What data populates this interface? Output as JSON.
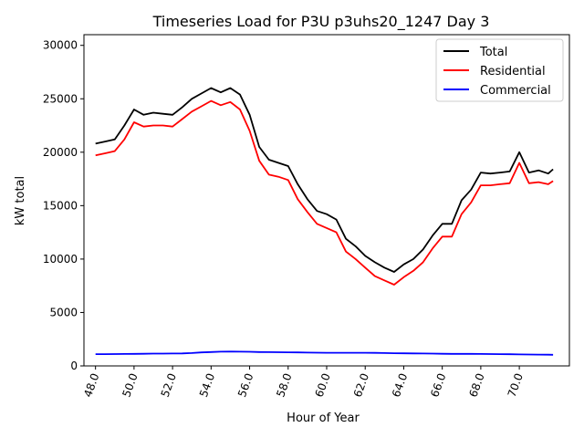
{
  "chart_data": {
    "type": "line",
    "title": "Timeseries Load for P3U p3uhs20_1247  Day 3",
    "xlabel": "Hour of Year",
    "ylabel": "kW total",
    "xlim": [
      47.4,
      72.6
    ],
    "ylim": [
      0,
      31000
    ],
    "xticks": [
      48,
      50,
      52,
      54,
      56,
      58,
      60,
      62,
      64,
      66,
      68,
      70
    ],
    "xtick_labels": [
      "48.0",
      "50.0",
      "52.0",
      "54.0",
      "56.0",
      "58.0",
      "60.0",
      "62.0",
      "64.0",
      "66.0",
      "68.0",
      "70.0"
    ],
    "yticks": [
      0,
      5000,
      10000,
      15000,
      20000,
      25000,
      30000
    ],
    "ytick_labels": [
      "0",
      "5000",
      "10000",
      "15000",
      "20000",
      "25000",
      "30000"
    ],
    "legend_position": "top-right",
    "x": [
      48,
      48.5,
      49,
      49.5,
      50,
      50.5,
      51,
      51.5,
      52,
      52.5,
      53,
      53.5,
      54,
      54.5,
      55,
      55.5,
      56,
      56.5,
      57,
      57.5,
      58,
      58.5,
      59,
      59.5,
      60,
      60.5,
      61,
      61.5,
      62,
      62.5,
      63,
      63.5,
      64,
      64.5,
      65,
      65.5,
      66,
      66.5,
      67,
      67.5,
      68,
      68.5,
      69,
      69.5,
      70,
      70.5,
      71,
      71.5,
      71.75
    ],
    "series": [
      {
        "name": "Total",
        "color": "#000000",
        "values": [
          20800,
          21000,
          21200,
          22500,
          24000,
          23500,
          23700,
          23600,
          23500,
          24200,
          25000,
          25500,
          26000,
          25600,
          26000,
          25400,
          23500,
          20500,
          19300,
          19000,
          18700,
          17000,
          15600,
          14500,
          14200,
          13700,
          11900,
          11200,
          10300,
          9700,
          9200,
          8800,
          9500,
          10000,
          10900,
          12200,
          13300,
          13300,
          15500,
          16500,
          18100,
          18000,
          18100,
          18200,
          20000,
          18100,
          18300,
          18000,
          18400
        ]
      },
      {
        "name": "Residential",
        "color": "#ff0000",
        "values": [
          19700,
          19900,
          20100,
          21200,
          22800,
          22400,
          22500,
          22500,
          22400,
          23100,
          23800,
          24300,
          24800,
          24400,
          24700,
          24000,
          22000,
          19200,
          17900,
          17700,
          17400,
          15600,
          14400,
          13300,
          12900,
          12500,
          10700,
          10000,
          9200,
          8400,
          8000,
          7600,
          8300,
          8900,
          9700,
          11000,
          12100,
          12100,
          14200,
          15300,
          16900,
          16900,
          17000,
          17100,
          19000,
          17100,
          17200,
          17000,
          17300
        ]
      },
      {
        "name": "Commercial",
        "color": "#0000ff",
        "values": [
          1100,
          1100,
          1110,
          1120,
          1130,
          1140,
          1150,
          1150,
          1160,
          1170,
          1200,
          1260,
          1300,
          1330,
          1340,
          1330,
          1320,
          1300,
          1290,
          1280,
          1270,
          1260,
          1250,
          1240,
          1230,
          1230,
          1230,
          1230,
          1230,
          1220,
          1200,
          1190,
          1180,
          1170,
          1160,
          1150,
          1140,
          1130,
          1130,
          1130,
          1120,
          1110,
          1100,
          1090,
          1080,
          1070,
          1060,
          1050,
          1040
        ]
      }
    ]
  }
}
